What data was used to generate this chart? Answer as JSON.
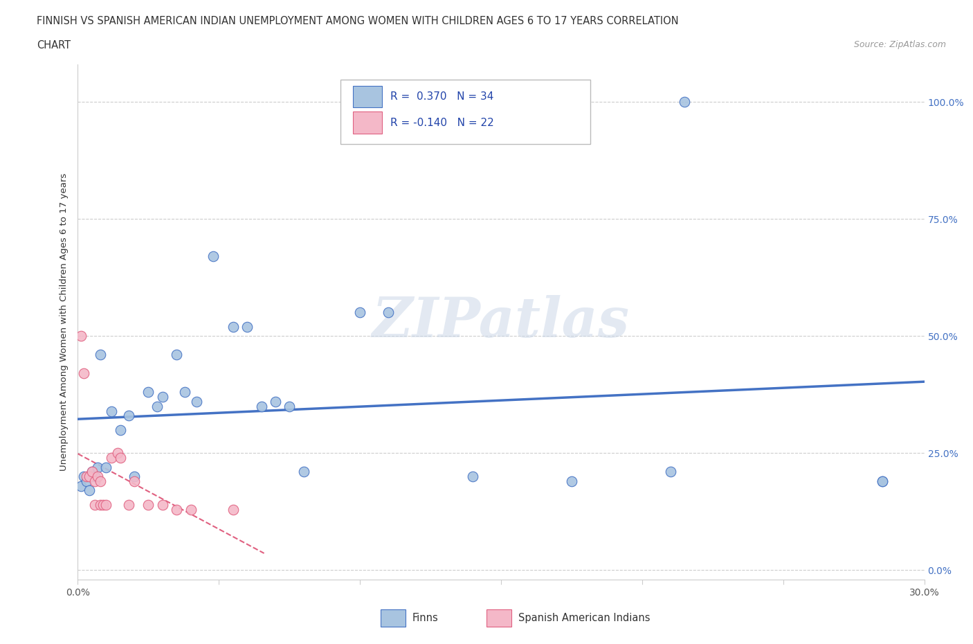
{
  "title_line1": "FINNISH VS SPANISH AMERICAN INDIAN UNEMPLOYMENT AMONG WOMEN WITH CHILDREN AGES 6 TO 17 YEARS CORRELATION",
  "title_line2": "CHART",
  "source": "Source: ZipAtlas.com",
  "ylabel": "Unemployment Among Women with Children Ages 6 to 17 years",
  "xlim": [
    0.0,
    0.3
  ],
  "ylim": [
    -0.02,
    1.08
  ],
  "ytick_values": [
    0.0,
    0.25,
    0.5,
    0.75,
    1.0
  ],
  "r_finn": 0.37,
  "n_finn": 34,
  "r_spanish": -0.14,
  "n_spanish": 22,
  "legend_finn": "Finns",
  "legend_spanish": "Spanish American Indians",
  "finn_color": "#a8c4e0",
  "finn_line_color": "#4472c4",
  "spanish_color": "#f4b8c8",
  "spanish_line_color": "#e06080",
  "background_color": "#ffffff",
  "watermark": "ZIPatlas",
  "watermark_color": "#ccd8e8",
  "grid_color": "#cccccc",
  "finn_points_x": [
    0.001,
    0.002,
    0.003,
    0.004,
    0.005,
    0.006,
    0.007,
    0.008,
    0.01,
    0.012,
    0.015,
    0.018,
    0.02,
    0.025,
    0.028,
    0.03,
    0.035,
    0.038,
    0.042,
    0.048,
    0.055,
    0.06,
    0.065,
    0.07,
    0.075,
    0.08,
    0.1,
    0.11,
    0.14,
    0.175,
    0.21,
    0.215,
    0.285,
    0.285
  ],
  "finn_points_y": [
    0.18,
    0.2,
    0.19,
    0.17,
    0.21,
    0.2,
    0.22,
    0.46,
    0.22,
    0.34,
    0.3,
    0.33,
    0.2,
    0.38,
    0.35,
    0.37,
    0.46,
    0.38,
    0.36,
    0.67,
    0.52,
    0.52,
    0.35,
    0.36,
    0.35,
    0.21,
    0.55,
    0.55,
    0.2,
    0.19,
    0.21,
    1.0,
    0.19,
    0.19
  ],
  "spanish_points_x": [
    0.001,
    0.002,
    0.003,
    0.004,
    0.005,
    0.006,
    0.006,
    0.007,
    0.008,
    0.008,
    0.009,
    0.01,
    0.012,
    0.014,
    0.015,
    0.018,
    0.02,
    0.025,
    0.03,
    0.035,
    0.04,
    0.055
  ],
  "spanish_points_y": [
    0.5,
    0.42,
    0.2,
    0.2,
    0.21,
    0.19,
    0.14,
    0.2,
    0.19,
    0.14,
    0.14,
    0.14,
    0.24,
    0.25,
    0.24,
    0.14,
    0.19,
    0.14,
    0.14,
    0.13,
    0.13,
    0.13
  ]
}
